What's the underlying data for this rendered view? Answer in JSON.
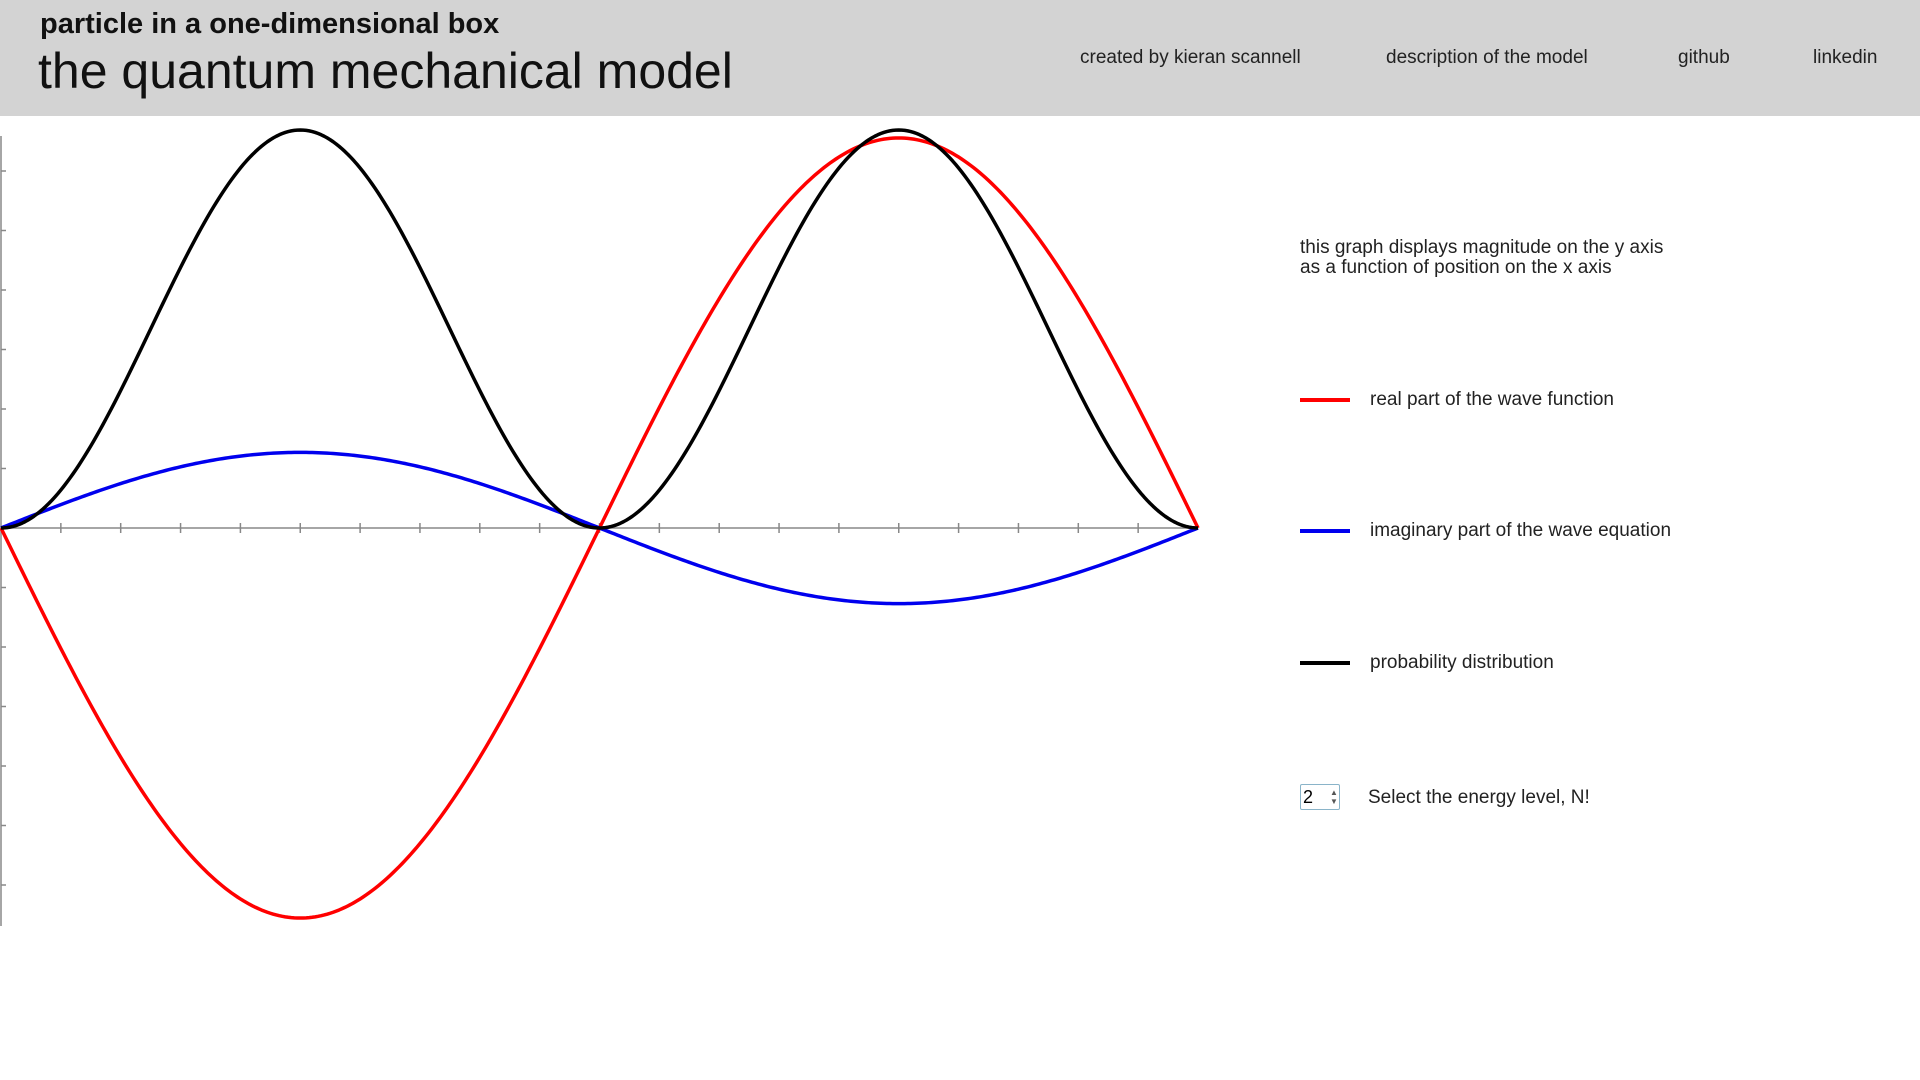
{
  "header": {
    "subtitle": "particle in a one-dimensional box",
    "title": "the quantum mechanical model",
    "nav": [
      "created by kieran scannell",
      "description of the model",
      "github",
      "linkedin"
    ]
  },
  "info": {
    "line1": "this graph displays magnitude on the y axis",
    "line2": "as a function of position on the x axis"
  },
  "legend": [
    {
      "label": "real part of the wave function",
      "color": "#ff0000"
    },
    {
      "label": "imaginary part of the wave equation",
      "color": "#0000ee"
    },
    {
      "label": "probability distribution",
      "color": "#000000"
    }
  ],
  "energy": {
    "value": "2",
    "label": "Select the energy level, N!"
  },
  "chart_data": {
    "type": "line",
    "n": 2,
    "xlim": [
      0,
      1
    ],
    "ylim": [
      -1,
      1
    ],
    "grid": false,
    "series": [
      {
        "name": "real part of the wave function",
        "color": "#ff0000",
        "function": "-sin(N*pi*x)",
        "amplitude": 0.98
      },
      {
        "name": "imaginary part of the wave equation",
        "color": "#0000ee",
        "function": "sin(N*pi*x)",
        "amplitude": 0.19
      },
      {
        "name": "probability distribution",
        "color": "#000000",
        "function": "sin^2(N*pi*x)",
        "amplitude": 1.0
      }
    ]
  }
}
